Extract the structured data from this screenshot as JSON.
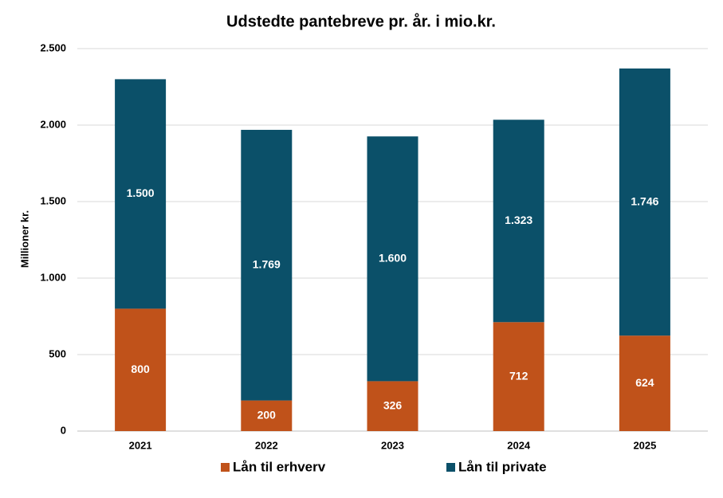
{
  "chart_data": {
    "type": "stacked-bar",
    "title": "Udstedte pantebreve pr. år. i mio.kr.",
    "y_label": "Millioner kr.",
    "categories": [
      "2021",
      "2022",
      "2023",
      "2024",
      "2025"
    ],
    "series": [
      {
        "name": "Lån til erhverv",
        "color": "#c0521a",
        "values": [
          800,
          200,
          326,
          712,
          624
        ]
      },
      {
        "name": "Lån til private",
        "color": "#0b5069",
        "values": [
          1500,
          1769,
          1600,
          1323,
          1746
        ],
        "value_labels": [
          "1.500",
          "1.769",
          "1.600",
          "1.323",
          "1.746"
        ]
      }
    ],
    "ylim": [
      0,
      2500
    ],
    "yticks": [
      0,
      500,
      {
        "value": 1000,
        "label": "1.000"
      },
      {
        "value": 1500,
        "label": "1.500"
      },
      {
        "value": 2000,
        "label": "2.000"
      },
      {
        "value": 2500,
        "label": "2.500"
      }
    ],
    "grid": true,
    "legend": "bottom"
  }
}
